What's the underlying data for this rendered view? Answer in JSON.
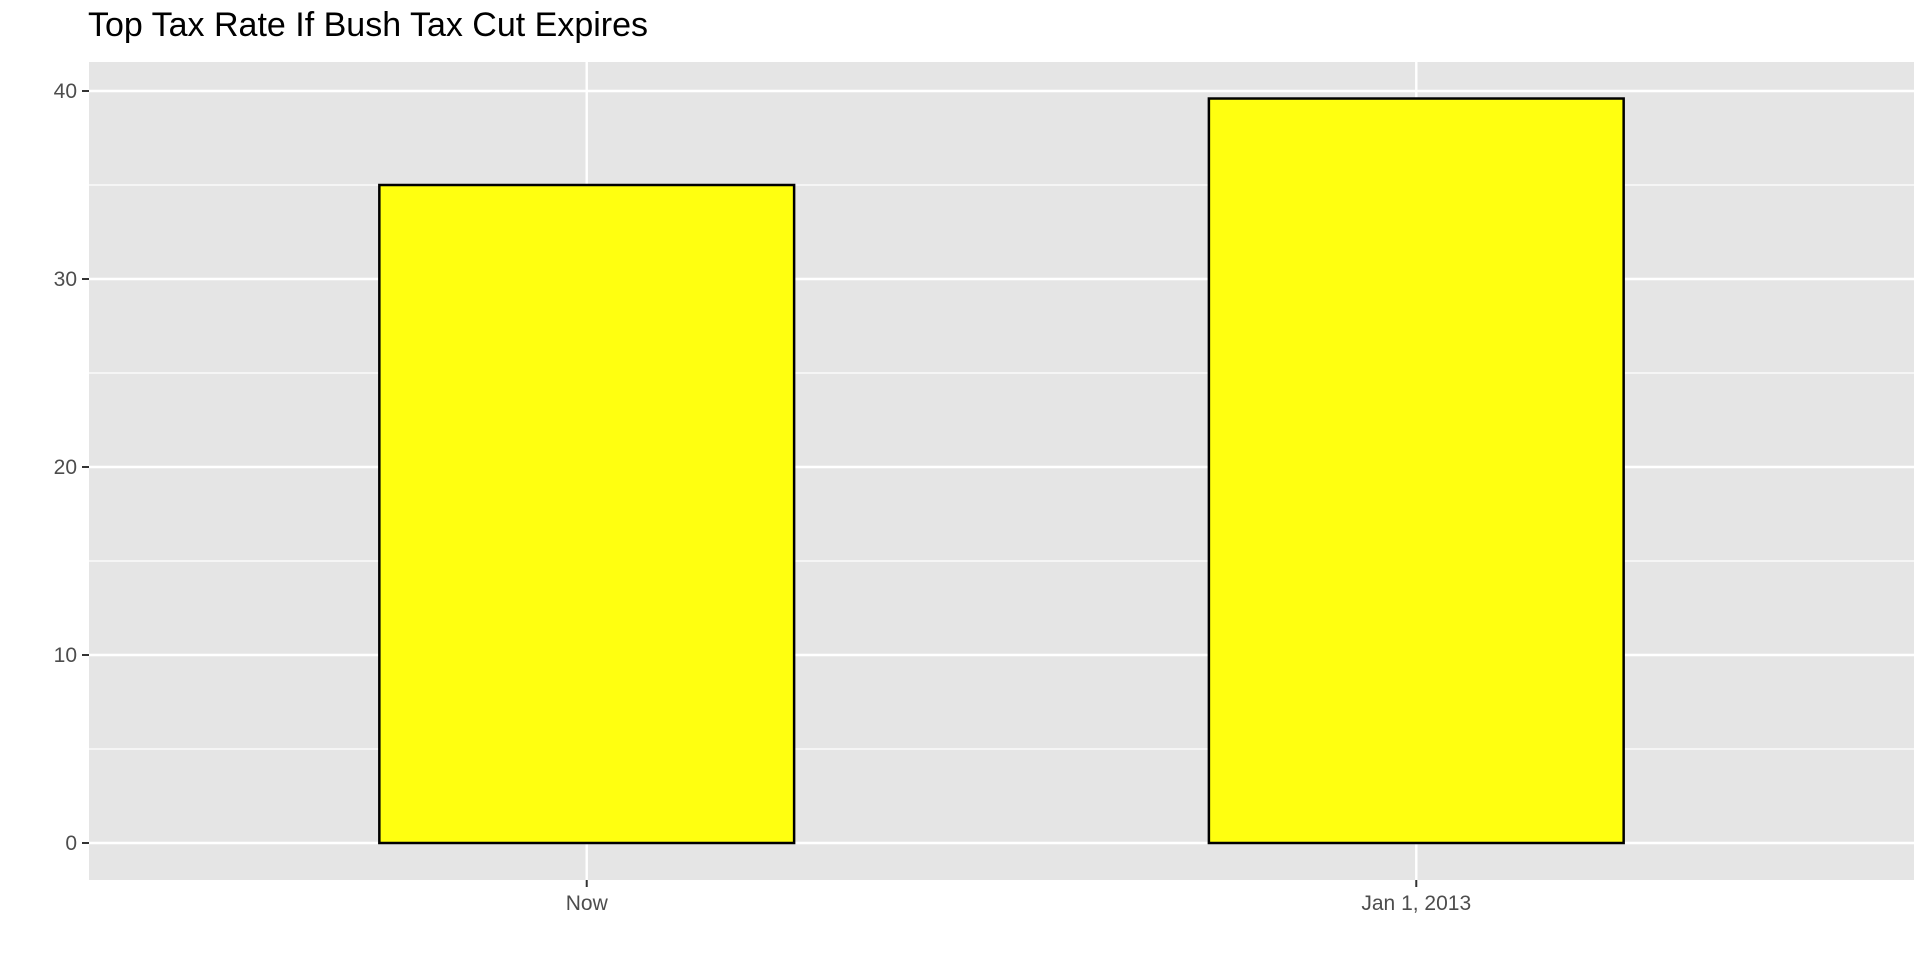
{
  "chart_data": {
    "type": "bar",
    "title": "Top Tax Rate If Bush Tax Cut Expires",
    "xlabel": "",
    "ylabel": "",
    "categories": [
      "Now",
      "Jan 1, 2013"
    ],
    "values": [
      35,
      39.6
    ],
    "ylim": [
      0,
      40
    ],
    "yticks": [
      "0",
      "10",
      "20",
      "30",
      "40"
    ],
    "bar_color": "#FFFF10",
    "bar_outline_color": "#000000",
    "panel_background": "#E5E5E5",
    "grid": true,
    "legend": "none"
  }
}
